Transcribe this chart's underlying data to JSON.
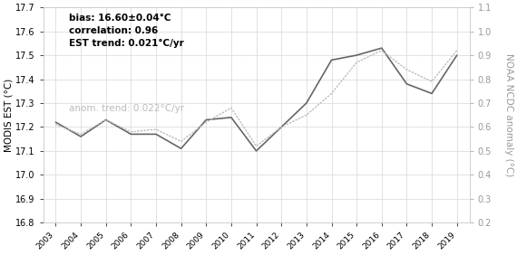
{
  "years": [
    2003,
    2004,
    2005,
    2006,
    2007,
    2008,
    2009,
    2010,
    2011,
    2012,
    2013,
    2014,
    2015,
    2016,
    2017,
    2018,
    2019
  ],
  "modis_est": [
    17.22,
    17.16,
    17.23,
    17.17,
    17.17,
    17.11,
    17.23,
    17.24,
    17.1,
    17.2,
    17.3,
    17.48,
    17.5,
    17.53,
    17.38,
    17.34,
    17.5
  ],
  "noaa_anom": [
    0.61,
    0.57,
    0.63,
    0.58,
    0.59,
    0.54,
    0.62,
    0.68,
    0.52,
    0.6,
    0.65,
    0.74,
    0.87,
    0.92,
    0.84,
    0.79,
    0.92
  ],
  "left_ylim": [
    16.8,
    17.7
  ],
  "right_ylim": [
    0.2,
    1.1
  ],
  "left_yticks": [
    16.8,
    16.9,
    17.0,
    17.1,
    17.2,
    17.3,
    17.4,
    17.5,
    17.6,
    17.7
  ],
  "right_yticks": [
    0.2,
    0.3,
    0.4,
    0.5,
    0.6,
    0.7,
    0.8,
    0.9,
    1.0,
    1.1
  ],
  "ylabel_left": "MODIS EST (°C)",
  "ylabel_right": "NOAA NCDC anomaly (°C)",
  "line1_color": "#666666",
  "line2_color": "#bbbbbb",
  "annotation_bold": "bias: 16.60±0.04°C\ncorrelation: 0.96\nEST trend: 0.021°C/yr",
  "annotation_gray": "anom. trend: 0.022°C/yr",
  "bg_color": "#ffffff",
  "grid_color": "#dddddd",
  "right_label_color": "#999999",
  "right_tick_color": "#999999"
}
